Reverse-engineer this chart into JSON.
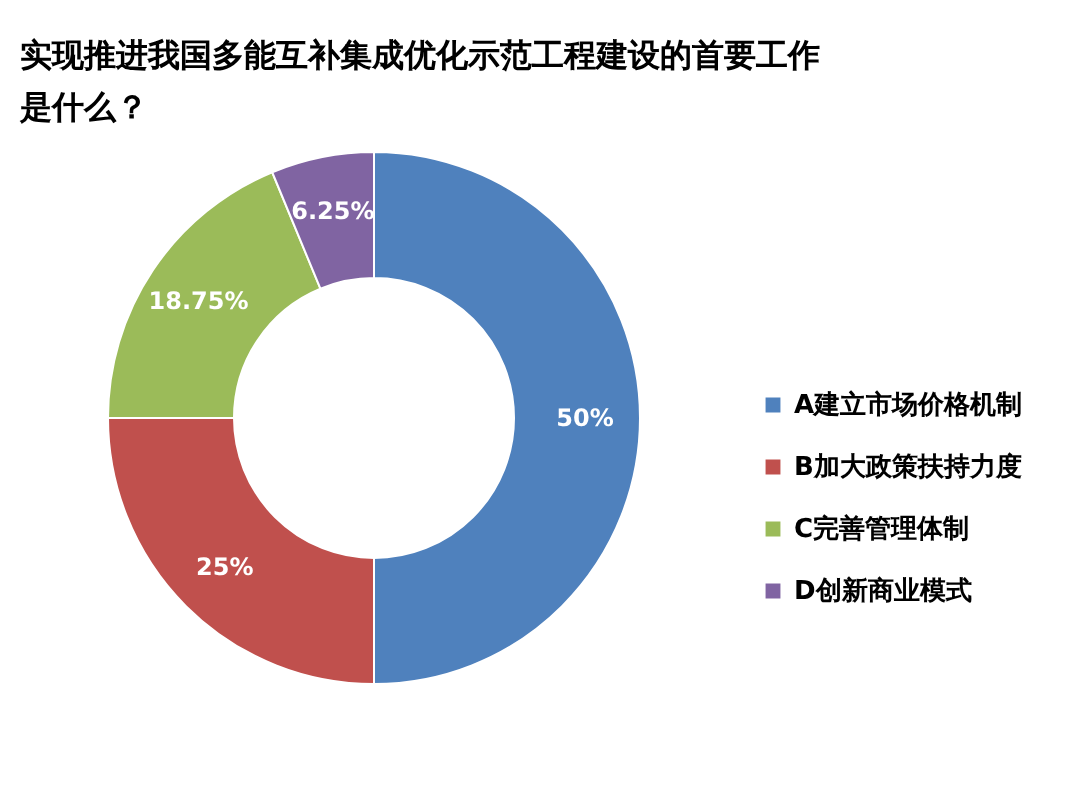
{
  "chart_data": {
    "type": "donut",
    "title": "实现推进我国多能互补集成优化示范工程建设的首要工作是什么？",
    "categories": [
      "A建立市场价格机制",
      "B加大政策扶持力度",
      "C完善管理体制",
      "D创新商业模式"
    ],
    "values": [
      50,
      25,
      18.75,
      6.25
    ],
    "colors": [
      "#4f81bd",
      "#c0504d",
      "#9bbb59",
      "#8064a2"
    ],
    "value_labels": [
      "50%",
      "25%",
      "18.75%",
      "6.25%"
    ],
    "legend": "right"
  }
}
